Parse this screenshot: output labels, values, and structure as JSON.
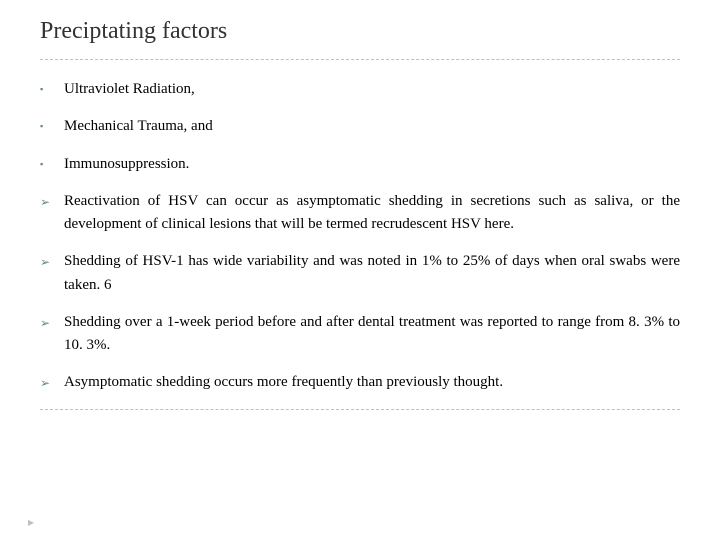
{
  "title": "Preciptating factors",
  "bullets_square": [
    "Ultraviolet Radiation,",
    "Mechanical Trauma, and",
    "Immunosuppression."
  ],
  "bullets_arrow": [
    "Reactivation of HSV can occur as asymptomatic shedding in secretions such as saliva, or the development of clinical lesions that will be termed recrudescent HSV here.",
    "Shedding of HSV-1 has wide variability and was noted in 1% to 25% of days when oral swabs were taken. 6",
    "Shedding over a 1-week period before and after dental treatment was reported to range from 8. 3% to 10. 3%.",
    "Asymptomatic shedding occurs more frequently than previously thought."
  ],
  "colors": {
    "bullet": "#5f8a6e",
    "text": "#000000",
    "title": "#333333",
    "divider": "#bfbfbf",
    "background": "#ffffff"
  },
  "glyphs": {
    "square": "▪",
    "arrow": "➢",
    "corner": "▸"
  }
}
